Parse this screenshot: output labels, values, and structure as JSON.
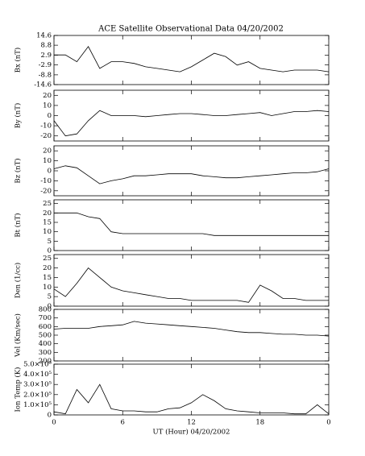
{
  "chart_data": [
    {
      "type": "line",
      "title": "ACE Satellite Observational Data   04/20/2002",
      "ylabel": "Bx (nT)",
      "x": [
        0,
        1,
        2,
        3,
        4,
        5,
        6,
        7,
        8,
        9,
        10,
        11,
        12,
        13,
        14,
        15,
        16,
        17,
        18,
        19,
        20,
        21,
        22,
        23,
        24
      ],
      "values": [
        3,
        3,
        -1,
        8,
        -5,
        -1,
        -1,
        -2,
        -4,
        -5,
        -6,
        -7,
        -4,
        0,
        4,
        2,
        -3,
        -1,
        -5,
        -6,
        -7,
        -6,
        -6,
        -6,
        -7
      ],
      "xlim": [
        0,
        24
      ],
      "xticks": [
        0,
        6,
        12,
        18,
        24
      ],
      "ylim": [
        -14.6,
        14.6
      ],
      "yticks": [
        -14.6,
        -8.8,
        -2.9,
        2.9,
        8.8,
        14.6
      ]
    },
    {
      "type": "line",
      "ylabel": "By (nT)",
      "x": [
        0,
        1,
        2,
        3,
        4,
        5,
        6,
        7,
        8,
        9,
        10,
        11,
        12,
        13,
        14,
        15,
        16,
        17,
        18,
        19,
        20,
        21,
        22,
        23,
        24
      ],
      "values": [
        -5,
        -20,
        -18,
        -5,
        5,
        0,
        0,
        0,
        -1,
        0,
        1,
        2,
        2,
        1,
        0,
        0,
        1,
        2,
        3,
        0,
        2,
        4,
        4,
        5,
        4
      ],
      "xlim": [
        0,
        24
      ],
      "xticks": [
        0,
        6,
        12,
        18,
        24
      ],
      "ylim": [
        -25,
        25
      ],
      "yticks": [
        -20,
        -10,
        0,
        10,
        20
      ]
    },
    {
      "type": "line",
      "ylabel": "Bz (nT)",
      "x": [
        0,
        1,
        2,
        3,
        4,
        5,
        6,
        7,
        8,
        9,
        10,
        11,
        12,
        13,
        14,
        15,
        16,
        17,
        18,
        19,
        20,
        21,
        22,
        23,
        24
      ],
      "values": [
        2,
        5,
        3,
        -5,
        -13,
        -10,
        -8,
        -5,
        -5,
        -4,
        -3,
        -3,
        -3,
        -5,
        -6,
        -7,
        -7,
        -6,
        -5,
        -4,
        -3,
        -2,
        -2,
        -1,
        2
      ],
      "xlim": [
        0,
        24
      ],
      "xticks": [
        0,
        6,
        12,
        18,
        24
      ],
      "ylim": [
        -25,
        25
      ],
      "yticks": [
        -20,
        -10,
        0,
        10,
        20
      ]
    },
    {
      "type": "line",
      "ylabel": "Bt (nT)",
      "x": [
        0,
        1,
        2,
        3,
        4,
        5,
        6,
        7,
        8,
        9,
        10,
        11,
        12,
        13,
        14,
        15,
        16,
        17,
        18,
        19,
        20,
        21,
        22,
        23,
        24
      ],
      "values": [
        20,
        20,
        20,
        18,
        17,
        10,
        9,
        9,
        9,
        9,
        9,
        9,
        9,
        9,
        8,
        8,
        8,
        8,
        8,
        8,
        8,
        8,
        8,
        8,
        8
      ],
      "xlim": [
        0,
        24
      ],
      "xticks": [
        0,
        6,
        12,
        18,
        24
      ],
      "ylim": [
        0,
        27
      ],
      "yticks": [
        0,
        5,
        10,
        15,
        20,
        25
      ]
    },
    {
      "type": "line",
      "ylabel": "Den (1/cc)",
      "x": [
        0,
        1,
        2,
        3,
        4,
        5,
        6,
        7,
        8,
        9,
        10,
        11,
        12,
        13,
        14,
        15,
        16,
        17,
        18,
        19,
        20,
        21,
        22,
        23,
        24
      ],
      "values": [
        9,
        5,
        12,
        20,
        15,
        10,
        8,
        7,
        6,
        5,
        4,
        4,
        3,
        3,
        3,
        3,
        3,
        2,
        11,
        8,
        4,
        4,
        3,
        3,
        3
      ],
      "xlim": [
        0,
        24
      ],
      "xticks": [
        0,
        6,
        12,
        18,
        24
      ],
      "ylim": [
        0,
        27
      ],
      "yticks": [
        0,
        5,
        10,
        15,
        20,
        25
      ]
    },
    {
      "type": "line",
      "ylabel": "Vel (Km/sec)",
      "x": [
        0,
        1,
        2,
        3,
        4,
        5,
        6,
        7,
        8,
        9,
        10,
        11,
        12,
        13,
        14,
        15,
        16,
        17,
        18,
        19,
        20,
        21,
        22,
        23,
        24
      ],
      "values": [
        570,
        580,
        580,
        580,
        600,
        610,
        620,
        660,
        640,
        630,
        620,
        610,
        600,
        590,
        580,
        560,
        540,
        530,
        530,
        520,
        510,
        510,
        500,
        500,
        490
      ],
      "xlim": [
        0,
        24
      ],
      "xticks": [
        0,
        6,
        12,
        18,
        24
      ],
      "ylim": [
        200,
        800
      ],
      "yticks": [
        200,
        300,
        400,
        500,
        600,
        700,
        800
      ]
    },
    {
      "type": "line",
      "ylabel": "Ion Temp (K)",
      "xlabel": "UT (Hour)  04/20/2002",
      "x": [
        0,
        1,
        2,
        3,
        4,
        5,
        6,
        7,
        8,
        9,
        10,
        11,
        12,
        13,
        14,
        15,
        16,
        17,
        18,
        19,
        20,
        21,
        22,
        23,
        24
      ],
      "values": [
        30000,
        10000,
        250000,
        120000,
        300000,
        60000,
        40000,
        40000,
        30000,
        30000,
        60000,
        70000,
        120000,
        200000,
        140000,
        60000,
        40000,
        30000,
        20000,
        20000,
        20000,
        10000,
        10000,
        100000,
        10000
      ],
      "xlim": [
        0,
        24
      ],
      "xticks": [
        0,
        6,
        12,
        18,
        {
          "value": 24,
          "label": "0"
        }
      ],
      "ylim": [
        0,
        500000
      ],
      "yticks": [
        0,
        {
          "value": 100000,
          "label": "1.0×10⁵"
        },
        {
          "value": 200000,
          "label": "2.0×10⁵"
        },
        {
          "value": 300000,
          "label": "3.0×10⁵"
        },
        {
          "value": 400000,
          "label": "4.0×10⁵"
        },
        {
          "value": 500000,
          "label": "5.0×10⁵"
        }
      ]
    }
  ]
}
